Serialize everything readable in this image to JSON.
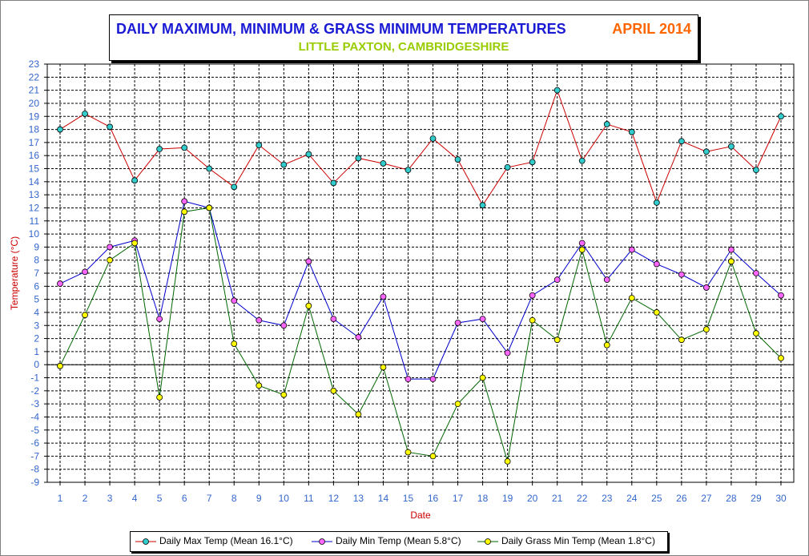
{
  "chart_data": {
    "type": "line",
    "title": "DAILY MAXIMUM, MINIMUM & GRASS MINIMUM TEMPERATURES",
    "title_date": "APRIL 2014",
    "subtitle": "LITTLE PAXTON, CAMBRIDGESHIRE",
    "xlabel": "Date",
    "ylabel": "Temperature (°C)",
    "ylim": [
      -9,
      23
    ],
    "xlim": [
      1,
      30
    ],
    "grid": true,
    "legend_position": "bottom",
    "x": [
      1,
      2,
      3,
      4,
      5,
      6,
      7,
      8,
      9,
      10,
      11,
      12,
      13,
      14,
      15,
      16,
      17,
      18,
      19,
      20,
      21,
      22,
      23,
      24,
      25,
      26,
      27,
      28,
      29,
      30
    ],
    "series": [
      {
        "name": "Daily Max Temp (Mean 16.1°C)",
        "line_color": "#cc0000",
        "marker_color": "#33cccc",
        "values": [
          18.0,
          19.2,
          18.2,
          14.1,
          16.5,
          16.6,
          15.0,
          13.6,
          16.8,
          15.3,
          16.1,
          13.9,
          15.8,
          15.4,
          14.9,
          17.3,
          15.7,
          12.2,
          15.1,
          15.5,
          21.0,
          15.6,
          18.4,
          17.8,
          12.4,
          17.1,
          16.3,
          16.7,
          14.9,
          19.0
        ]
      },
      {
        "name": "Daily Min Temp (Mean 5.8°C)",
        "line_color": "#0000cc",
        "marker_color": "#ff66ff",
        "values": [
          6.2,
          7.1,
          9.0,
          9.5,
          3.5,
          12.5,
          12.0,
          4.9,
          3.4,
          3.0,
          7.9,
          3.5,
          2.1,
          5.2,
          -1.1,
          -1.1,
          3.2,
          3.5,
          0.9,
          5.3,
          6.5,
          9.3,
          6.5,
          8.8,
          7.7,
          6.9,
          5.9,
          8.8,
          7.0,
          5.3
        ]
      },
      {
        "name": "Daily Grass Min Temp (Mean 1.8°C)",
        "line_color": "#006600",
        "marker_color": "#ffff00",
        "values": [
          -0.1,
          3.8,
          8.0,
          9.3,
          -2.5,
          11.7,
          12.0,
          1.6,
          -1.6,
          -2.3,
          4.5,
          -2.0,
          -3.8,
          -0.2,
          -6.7,
          -7.0,
          -3.0,
          -1.0,
          -7.4,
          3.4,
          1.9,
          8.8,
          1.5,
          5.1,
          4.0,
          1.9,
          2.7,
          7.9,
          2.4,
          0.5
        ]
      }
    ]
  }
}
